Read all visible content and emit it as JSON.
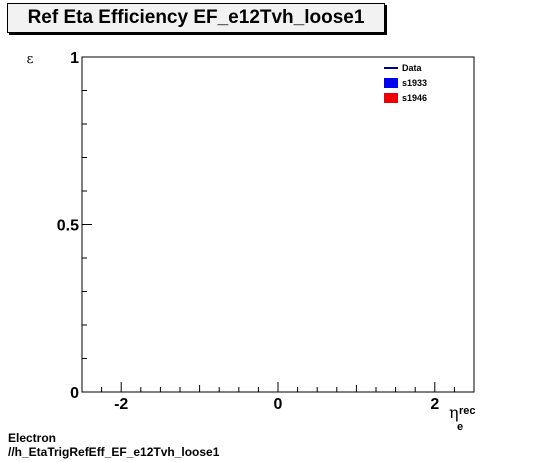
{
  "title": "Ref Eta Efficiency EF_e12Tvh_loose1",
  "footer": {
    "line1": "Electron",
    "line2": "//h_EtaTrigRefEff_EF_e12Tvh_loose1"
  },
  "chart_data": {
    "type": "line",
    "title": "Ref Eta Efficiency EF_e12Tvh_loose1",
    "xlabel": "η_e^rec",
    "ylabel": "ε",
    "xlim": [
      -2.5,
      2.5
    ],
    "ylim": [
      0,
      1
    ],
    "x_ticks": [
      -2,
      0,
      2
    ],
    "x_tick_labels": [
      "-2",
      "0",
      "2"
    ],
    "y_ticks": [
      0,
      0.5,
      1
    ],
    "y_tick_labels": [
      "0",
      "0.5",
      "1"
    ],
    "grid": false,
    "legend_position": "top-right",
    "series": [
      {
        "name": "Data",
        "color": "#000080",
        "marker": "line",
        "x": [],
        "y": []
      },
      {
        "name": "s1933",
        "color": "#0000ee",
        "marker": "box",
        "x": [],
        "y": []
      },
      {
        "name": "s1946",
        "color": "#ee0000",
        "marker": "box",
        "x": [],
        "y": []
      }
    ]
  }
}
